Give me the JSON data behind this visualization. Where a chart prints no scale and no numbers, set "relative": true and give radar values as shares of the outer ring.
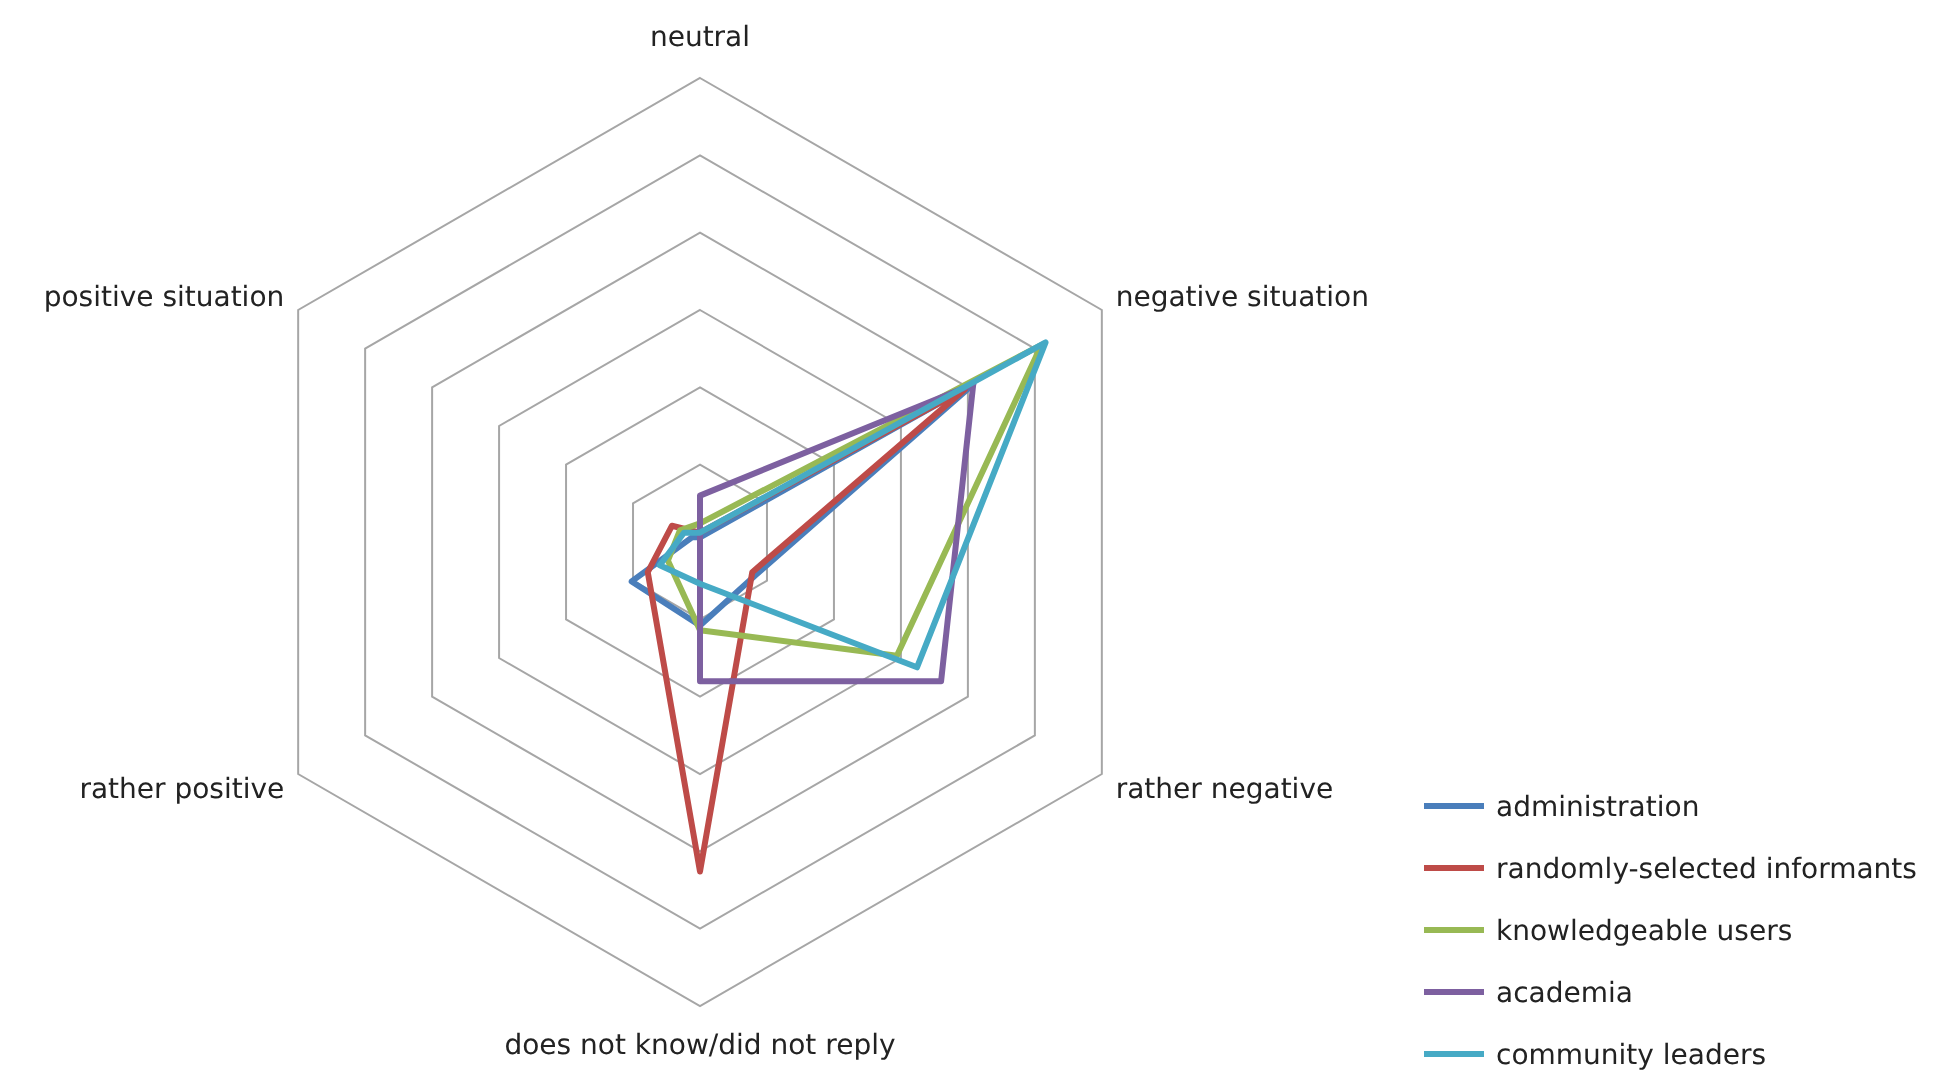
{
  "chart_data": {
    "type": "radar",
    "relative": true,
    "categories": [
      "neutral",
      "negative situation",
      "rather negative",
      "does not know/did not reply",
      "rather positive",
      "positive situation"
    ],
    "legend": "bottom right",
    "series": [
      {
        "name": "administration",
        "color": "#4a7ebb",
        "values": [
          0.01,
          0.68,
          0.14,
          0.18,
          0.17,
          0.02
        ]
      },
      {
        "name": "randomly-selected informants",
        "color": "#be4b48",
        "values": [
          0.02,
          0.66,
          0.13,
          0.71,
          0.13,
          0.07
        ]
      },
      {
        "name": "knowledgeable users",
        "color": "#98b954",
        "values": [
          0.04,
          0.85,
          0.49,
          0.19,
          0.08,
          0.05
        ]
      },
      {
        "name": "academia",
        "color": "#7d60a0",
        "values": [
          0.1,
          0.68,
          0.6,
          0.3,
          0,
          0
        ]
      },
      {
        "name": "community leaders",
        "color": "#46aac5",
        "values": [
          0.02,
          0.86,
          0.54,
          0.09,
          0.1,
          0.04
        ]
      }
    ]
  }
}
